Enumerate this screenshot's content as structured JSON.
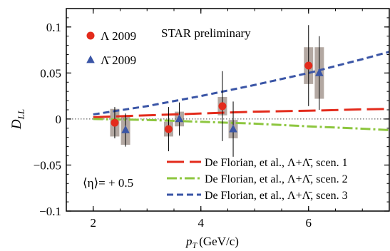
{
  "chart_data": {
    "type": "scatter",
    "title": "",
    "xlabel_main": "p",
    "xlabel_sub": "T",
    "xlabel_unit": "(GeV/c)",
    "ylabel_main": "D",
    "ylabel_sub": "LL",
    "xlim": [
      1.5,
      7.5
    ],
    "ylim": [
      -0.1,
      0.12
    ],
    "x_ticks": [
      2,
      4,
      6
    ],
    "x_tick_labels": [
      "2",
      "4",
      "6"
    ],
    "y_ticks": [
      -0.1,
      -0.05,
      0,
      0.05,
      0.1
    ],
    "y_tick_labels": [
      "−0.1",
      "−0.05",
      "0",
      "0.05",
      "0.1"
    ],
    "zero_line": true,
    "grid": false,
    "annotation_experiment": "STAR preliminary",
    "annotation_eta": "⟨η⟩= + 0.5",
    "series": [
      {
        "name": "Λ 2009",
        "marker": "circle",
        "color": "#e32b1c",
        "points": [
          {
            "x": 2.4,
            "y": -0.004,
            "stat_err": 0.017,
            "sys_err": 0.015
          },
          {
            "x": 3.4,
            "y": -0.011,
            "stat_err": 0.024,
            "sys_err": 0.008
          },
          {
            "x": 4.4,
            "y": 0.014,
            "stat_err": 0.038,
            "sys_err": 0.01
          },
          {
            "x": 6.0,
            "y": 0.058,
            "stat_err": 0.044,
            "sys_err": 0.02
          }
        ]
      },
      {
        "name": "Λ̄ 2009",
        "marker": "triangle",
        "color": "#3a55a6",
        "points": [
          {
            "x": 2.6,
            "y": -0.012,
            "stat_err": 0.018,
            "sys_err": 0.016
          },
          {
            "x": 3.6,
            "y": 0.0,
            "stat_err": 0.018,
            "sys_err": 0.008
          },
          {
            "x": 4.6,
            "y": -0.011,
            "stat_err": 0.03,
            "sys_err": 0.01
          },
          {
            "x": 6.2,
            "y": 0.05,
            "stat_err": 0.04,
            "sys_err": 0.028
          }
        ]
      }
    ],
    "systematic_box_color": "#b3a8a2",
    "curves": [
      {
        "name": "De Florian, et al., Λ+Λ̄, scen. 1",
        "color": "#e32b1c",
        "dash": "24 8",
        "x": [
          2.0,
          3.0,
          4.0,
          5.0,
          6.0,
          7.0,
          7.5
        ],
        "y": [
          0.002,
          0.004,
          0.006,
          0.008,
          0.009,
          0.0105,
          0.011
        ]
      },
      {
        "name": "De Florian, et al., Λ+Λ̄, scen. 2",
        "color": "#8dc63f",
        "dash": "14 4 3 4",
        "x": [
          2.0,
          3.0,
          4.0,
          5.0,
          6.0,
          7.0,
          7.5
        ],
        "y": [
          0.0,
          -0.001,
          -0.003,
          -0.005,
          -0.008,
          -0.0105,
          -0.012
        ]
      },
      {
        "name": "De Florian, et al., Λ+Λ̄, scen. 3",
        "color": "#3a55a6",
        "dash": "9 5",
        "x": [
          2.0,
          3.0,
          4.0,
          5.0,
          6.0,
          7.0,
          7.5
        ],
        "y": [
          0.005,
          0.014,
          0.025,
          0.037,
          0.05,
          0.065,
          0.073
        ]
      }
    ]
  }
}
